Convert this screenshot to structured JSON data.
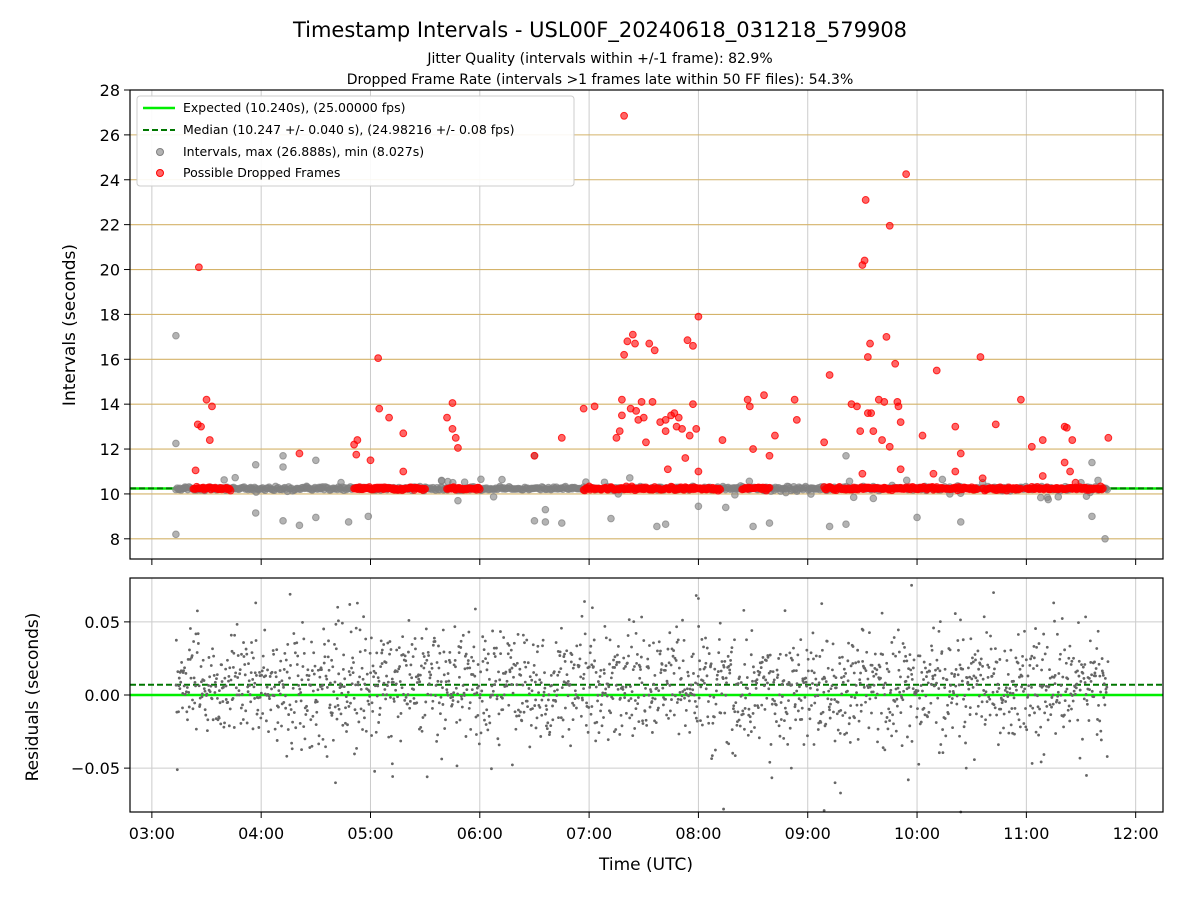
{
  "title": "Timestamp Intervals - USL00F_20240618_031218_579908",
  "subtitle_1": "Jitter Quality (intervals within +/-1 frame): 82.9%",
  "subtitle_2": "Dropped Frame Rate (intervals >1 frames late within 50 FF files): 54.3%",
  "colors": {
    "expected": "#00ee00",
    "median": "#007700",
    "interval_points": "#808080",
    "dropped_points": "#ff0000",
    "top_grid": "#d4b36a",
    "grid": "#cccccc",
    "residual_points": "#666666"
  },
  "chart_data": [
    {
      "type": "scatter",
      "ylabel": "Intervals (seconds)",
      "xlim": [
        2.8,
        12.25
      ],
      "ylim": [
        7.1,
        28
      ],
      "y_ticks": [
        8,
        10,
        12,
        14,
        16,
        18,
        20,
        22,
        24,
        26,
        28
      ],
      "y_tick_labels": [
        "8",
        "10",
        "12",
        "14",
        "16",
        "18",
        "20",
        "22",
        "24",
        "26",
        "28"
      ],
      "x_ticks": [
        3,
        4,
        5,
        6,
        7,
        8,
        9,
        10,
        11,
        12
      ],
      "grid": "horizontal lines at y ticks, vertical lines at x ticks",
      "legend_position": "top-left",
      "legend": [
        "Expected (10.240s), (25.00000 fps)",
        "Median (10.247 +/- 0.040 s), (24.98216 +/- 0.08 fps)",
        "Intervals, max (26.888s), min (8.027s)",
        "Possible Dropped Frames"
      ],
      "expected_y": 10.24,
      "median_y": 10.247,
      "interval_points": [
        [
          3.22,
          17.05
        ],
        [
          3.22,
          12.25
        ],
        [
          3.22,
          8.2
        ],
        [
          3.25,
          10.2
        ],
        [
          3.3,
          10.25
        ],
        [
          3.95,
          11.3
        ],
        [
          3.95,
          9.15
        ],
        [
          4.2,
          11.7
        ],
        [
          4.2,
          11.2
        ],
        [
          4.2,
          8.8
        ],
        [
          4.35,
          8.6
        ],
        [
          4.5,
          11.5
        ],
        [
          4.5,
          8.95
        ],
        [
          4.8,
          8.75
        ],
        [
          4.98,
          9.0
        ],
        [
          5.5,
          10.3
        ],
        [
          5.65,
          10.6
        ],
        [
          5.8,
          9.7
        ],
        [
          6.5,
          11.7
        ],
        [
          6.5,
          8.8
        ],
        [
          6.6,
          9.3
        ],
        [
          6.6,
          8.75
        ],
        [
          6.75,
          8.7
        ],
        [
          7.2,
          8.9
        ],
        [
          7.62,
          8.55
        ],
        [
          7.7,
          8.65
        ],
        [
          8.0,
          9.45
        ],
        [
          8.25,
          9.4
        ],
        [
          8.5,
          8.55
        ],
        [
          8.65,
          8.7
        ],
        [
          9.2,
          8.55
        ],
        [
          9.35,
          8.65
        ],
        [
          9.35,
          11.7
        ],
        [
          9.6,
          9.8
        ],
        [
          10.0,
          8.95
        ],
        [
          10.3,
          10.0
        ],
        [
          10.4,
          8.75
        ],
        [
          10.6,
          10.5
        ],
        [
          11.2,
          9.75
        ],
        [
          11.5,
          10.5
        ],
        [
          11.55,
          9.9
        ],
        [
          11.6,
          11.4
        ],
        [
          11.6,
          9.0
        ],
        [
          11.72,
          8.0
        ]
      ],
      "interval_baseline_range": [
        3.22,
        11.75
      ],
      "dropped_baseline_segments": [
        [
          3.38,
          3.72
        ],
        [
          4.85,
          5.5
        ],
        [
          5.7,
          6.0
        ],
        [
          6.95,
          8.2
        ],
        [
          8.4,
          8.65
        ],
        [
          9.15,
          9.4
        ],
        [
          9.4,
          9.7
        ],
        [
          9.7,
          10.55
        ],
        [
          10.6,
          10.95
        ],
        [
          11.0,
          11.7
        ]
      ],
      "dropped_points": [
        [
          3.43,
          20.1
        ],
        [
          3.4,
          11.05
        ],
        [
          3.42,
          13.1
        ],
        [
          3.45,
          13.0
        ],
        [
          3.5,
          14.2
        ],
        [
          3.53,
          12.4
        ],
        [
          3.55,
          13.9
        ],
        [
          4.35,
          11.8
        ],
        [
          4.85,
          12.2
        ],
        [
          4.88,
          12.4
        ],
        [
          4.87,
          11.75
        ],
        [
          5.0,
          11.5
        ],
        [
          5.07,
          16.05
        ],
        [
          5.08,
          13.8
        ],
        [
          5.17,
          13.4
        ],
        [
          5.3,
          12.7
        ],
        [
          5.3,
          11.0
        ],
        [
          5.7,
          13.4
        ],
        [
          5.75,
          14.05
        ],
        [
          5.75,
          12.9
        ],
        [
          5.78,
          12.5
        ],
        [
          5.8,
          12.05
        ],
        [
          6.5,
          11.7
        ],
        [
          6.75,
          12.5
        ],
        [
          6.95,
          13.8
        ],
        [
          7.05,
          13.9
        ],
        [
          7.25,
          12.5
        ],
        [
          7.28,
          12.8
        ],
        [
          7.3,
          13.5
        ],
        [
          7.3,
          14.2
        ],
        [
          7.32,
          26.85
        ],
        [
          7.32,
          16.2
        ],
        [
          7.35,
          16.8
        ],
        [
          7.38,
          13.8
        ],
        [
          7.4,
          17.1
        ],
        [
          7.42,
          16.7
        ],
        [
          7.43,
          13.7
        ],
        [
          7.45,
          13.3
        ],
        [
          7.48,
          14.1
        ],
        [
          7.5,
          13.4
        ],
        [
          7.52,
          12.3
        ],
        [
          7.55,
          16.7
        ],
        [
          7.58,
          14.1
        ],
        [
          7.6,
          16.4
        ],
        [
          7.65,
          13.2
        ],
        [
          7.7,
          13.3
        ],
        [
          7.7,
          12.8
        ],
        [
          7.72,
          11.1
        ],
        [
          7.75,
          13.5
        ],
        [
          7.78,
          13.6
        ],
        [
          7.8,
          13.0
        ],
        [
          7.82,
          13.4
        ],
        [
          7.85,
          12.9
        ],
        [
          7.88,
          11.6
        ],
        [
          7.9,
          16.85
        ],
        [
          7.92,
          12.6
        ],
        [
          7.95,
          16.6
        ],
        [
          7.95,
          14.0
        ],
        [
          7.98,
          12.9
        ],
        [
          8.0,
          17.9
        ],
        [
          8.0,
          11.0
        ],
        [
          8.22,
          12.4
        ],
        [
          8.45,
          14.2
        ],
        [
          8.47,
          13.9
        ],
        [
          8.5,
          12.0
        ],
        [
          8.6,
          14.4
        ],
        [
          8.65,
          11.7
        ],
        [
          8.7,
          12.6
        ],
        [
          8.88,
          14.2
        ],
        [
          8.9,
          13.3
        ],
        [
          9.15,
          12.3
        ],
        [
          9.2,
          15.3
        ],
        [
          9.4,
          14.0
        ],
        [
          9.45,
          13.9
        ],
        [
          9.48,
          12.8
        ],
        [
          9.5,
          10.9
        ],
        [
          9.5,
          20.2
        ],
        [
          9.52,
          20.4
        ],
        [
          9.53,
          23.1
        ],
        [
          9.55,
          16.1
        ],
        [
          9.57,
          16.7
        ],
        [
          9.55,
          13.6
        ],
        [
          9.58,
          13.6
        ],
        [
          9.6,
          12.8
        ],
        [
          9.65,
          14.2
        ],
        [
          9.68,
          12.4
        ],
        [
          9.7,
          14.1
        ],
        [
          9.72,
          17.0
        ],
        [
          9.75,
          21.95
        ],
        [
          9.75,
          12.1
        ],
        [
          9.8,
          15.8
        ],
        [
          9.82,
          14.1
        ],
        [
          9.83,
          13.9
        ],
        [
          9.85,
          11.1
        ],
        [
          9.85,
          13.2
        ],
        [
          9.9,
          24.25
        ],
        [
          10.05,
          12.6
        ],
        [
          10.15,
          10.9
        ],
        [
          10.18,
          15.5
        ],
        [
          10.35,
          13.0
        ],
        [
          10.35,
          11.0
        ],
        [
          10.4,
          11.8
        ],
        [
          10.58,
          16.1
        ],
        [
          10.6,
          10.7
        ],
        [
          10.72,
          13.1
        ],
        [
          10.95,
          14.2
        ],
        [
          11.05,
          12.1
        ],
        [
          11.15,
          12.4
        ],
        [
          11.15,
          10.8
        ],
        [
          11.35,
          13.0
        ],
        [
          11.37,
          12.95
        ],
        [
          11.35,
          11.4
        ],
        [
          11.4,
          11.0
        ],
        [
          11.42,
          12.4
        ],
        [
          11.45,
          10.5
        ],
        [
          11.75,
          12.5
        ]
      ]
    },
    {
      "type": "scatter",
      "ylabel": "Residuals (seconds)",
      "xlabel": "Time (UTC)",
      "xlim": [
        2.8,
        12.25
      ],
      "ylim": [
        -0.08,
        0.08
      ],
      "y_ticks": [
        -0.05,
        0,
        0.05
      ],
      "y_tick_labels": [
        "−0.05",
        "0.00",
        "0.05"
      ],
      "x_ticks": [
        3,
        4,
        5,
        6,
        7,
        8,
        9,
        10,
        11,
        12
      ],
      "x_tick_labels": [
        "03:00",
        "04:00",
        "05:00",
        "06:00",
        "07:00",
        "08:00",
        "09:00",
        "10:00",
        "11:00",
        "12:00"
      ],
      "grid": "on",
      "expected_y": 0.0,
      "median_y": 0.007,
      "residual_range": [
        3.22,
        11.75
      ],
      "residual_count": 1900,
      "residual_center": 0.007,
      "residual_spread": 0.02,
      "residual_outliers": [
        [
          3.95,
          0.063
        ],
        [
          4.7,
          0.06
        ],
        [
          4.68,
          -0.06
        ],
        [
          5.2,
          -0.047
        ],
        [
          7.98,
          0.068
        ],
        [
          8.0,
          0.066
        ],
        [
          8.23,
          -0.078
        ],
        [
          8.85,
          -0.05
        ],
        [
          9.15,
          -0.079
        ],
        [
          9.25,
          -0.06
        ],
        [
          9.3,
          -0.067
        ],
        [
          9.95,
          0.075
        ],
        [
          9.92,
          -0.058
        ],
        [
          10.4,
          -0.08
        ],
        [
          10.45,
          -0.05
        ],
        [
          11.55,
          -0.055
        ],
        [
          10.7,
          0.07
        ],
        [
          11.25,
          0.063
        ]
      ]
    }
  ]
}
